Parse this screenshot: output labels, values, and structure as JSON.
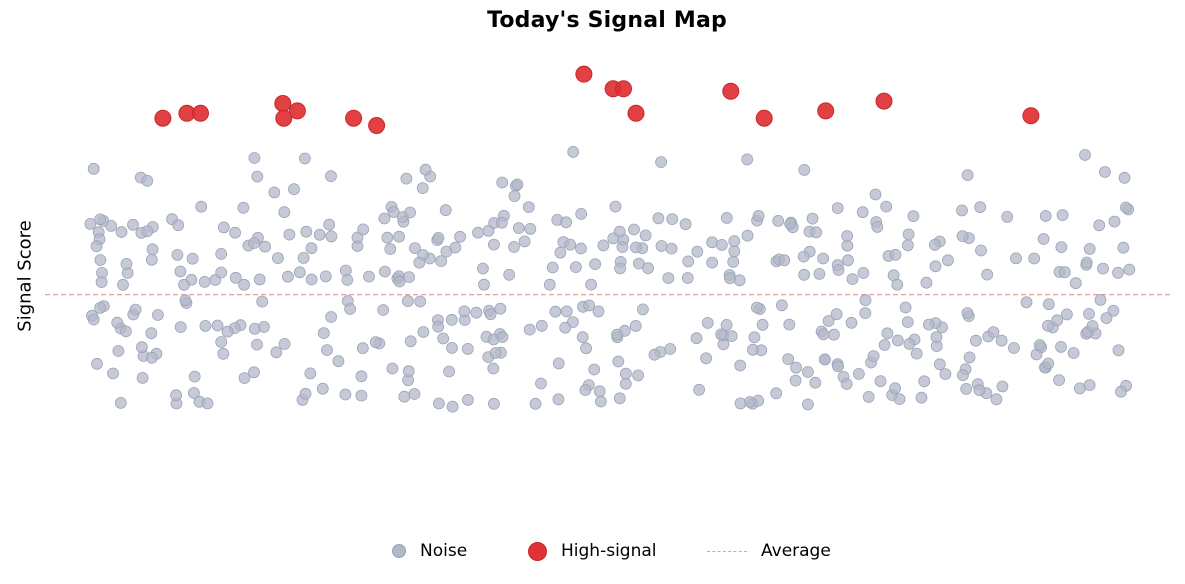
{
  "chart_data": {
    "type": "scatter",
    "title": "Today's Signal Map",
    "xlabel": "",
    "ylabel": "Signal Score",
    "xlim": [
      0,
      100
    ],
    "ylim": [
      0,
      100
    ],
    "average": 46,
    "grid": false,
    "legend_position": "bottom-center",
    "legend": [
      {
        "key": "noise",
        "label": "Noise",
        "color": "#b2b8c8"
      },
      {
        "key": "high",
        "label": "High-signal",
        "color": "#e03134"
      },
      {
        "key": "avg",
        "label": "Average",
        "color": "#f09a9a"
      }
    ],
    "series": [
      {
        "name": "Noise",
        "key": "noise",
        "color": "#b2b8c8",
        "noise_count": 480,
        "noise_band": [
          23,
          76
        ],
        "seed": 7
      },
      {
        "name": "High-signal",
        "key": "high",
        "color": "#e03134",
        "points": [
          {
            "x": 7.0,
            "y": 82
          },
          {
            "x": 9.3,
            "y": 83
          },
          {
            "x": 10.6,
            "y": 83
          },
          {
            "x": 18.5,
            "y": 85
          },
          {
            "x": 18.6,
            "y": 82
          },
          {
            "x": 19.9,
            "y": 83.5
          },
          {
            "x": 25.3,
            "y": 82
          },
          {
            "x": 27.5,
            "y": 80.5
          },
          {
            "x": 47.4,
            "y": 91
          },
          {
            "x": 50.2,
            "y": 88
          },
          {
            "x": 51.2,
            "y": 88
          },
          {
            "x": 52.4,
            "y": 83
          },
          {
            "x": 61.5,
            "y": 87.5
          },
          {
            "x": 64.7,
            "y": 82
          },
          {
            "x": 70.6,
            "y": 83.5
          },
          {
            "x": 76.2,
            "y": 85.5
          },
          {
            "x": 90.3,
            "y": 82.5
          }
        ]
      }
    ]
  }
}
